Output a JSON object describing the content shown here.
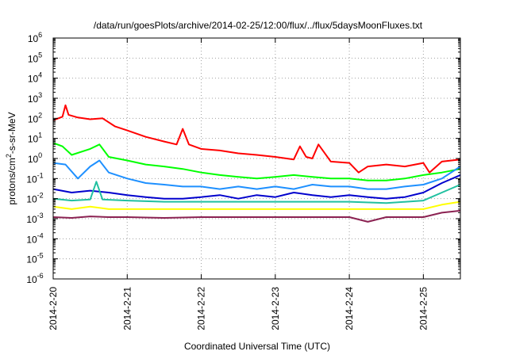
{
  "chart_data": {
    "type": "line",
    "title": "/data/run/goesPlots/archive/2014-02-25/12:00/flux/../flux/5daysMoonFluxes.txt",
    "xlabel": "Coordinated Universal Time (UTC)",
    "ylabel": {
      "base": "protons/cm",
      "sup": "2",
      "rest": "-s-sr-MeV"
    },
    "y_scale": "log",
    "ylim": [
      1e-06,
      1000000.0
    ],
    "y_ticks": [
      {
        "value": 1000000.0,
        "base": "10",
        "exp": "6"
      },
      {
        "value": 100000.0,
        "base": "10",
        "exp": "5"
      },
      {
        "value": 10000.0,
        "base": "10",
        "exp": "4"
      },
      {
        "value": 1000.0,
        "base": "10",
        "exp": "3"
      },
      {
        "value": 100.0,
        "base": "10",
        "exp": "2"
      },
      {
        "value": 10.0,
        "base": "10",
        "exp": "1"
      },
      {
        "value": 1.0,
        "base": "10",
        "exp": "0"
      },
      {
        "value": 0.1,
        "base": "10",
        "exp": "-1"
      },
      {
        "value": 0.01,
        "base": "10",
        "exp": "-2"
      },
      {
        "value": 0.001,
        "base": "10",
        "exp": "-3"
      },
      {
        "value": 0.0001,
        "base": "10",
        "exp": "-4"
      },
      {
        "value": 1e-05,
        "base": "10",
        "exp": "-5"
      },
      {
        "value": 1e-06,
        "base": "10",
        "exp": "-6"
      }
    ],
    "xlim": [
      "2014-02-20T00:00",
      "2014-02-25T12:00"
    ],
    "x_ticks": [
      "2014-2-20",
      "2014-2-21",
      "2014-2-22",
      "2014-2-23",
      "2014-2-24",
      "2014-2-25"
    ],
    "grid": true,
    "series": [
      {
        "color": "#ff0000",
        "x": [
          "2014-02-20T00:00",
          "2014-02-20T03:00",
          "2014-02-20T04:00",
          "2014-02-20T05:00",
          "2014-02-20T08:00",
          "2014-02-20T12:00",
          "2014-02-20T16:00",
          "2014-02-20T20:00",
          "2014-02-21T00:00",
          "2014-02-21T06:00",
          "2014-02-21T12:00",
          "2014-02-21T16:00",
          "2014-02-21T18:00",
          "2014-02-21T20:00",
          "2014-02-22T00:00",
          "2014-02-22T06:00",
          "2014-02-22T12:00",
          "2014-02-22T18:00",
          "2014-02-23T00:00",
          "2014-02-23T06:00",
          "2014-02-23T08:00",
          "2014-02-23T10:00",
          "2014-02-23T12:00",
          "2014-02-23T14:00",
          "2014-02-23T18:00",
          "2014-02-24T00:00",
          "2014-02-24T03:00",
          "2014-02-24T06:00",
          "2014-02-24T12:00",
          "2014-02-24T18:00",
          "2014-02-25T00:00",
          "2014-02-25T02:00",
          "2014-02-25T06:00",
          "2014-02-25T12:00"
        ],
        "y": [
          80,
          120,
          450,
          150,
          110,
          90,
          100,
          40,
          25,
          12,
          7,
          5,
          30,
          5,
          3,
          2.5,
          1.8,
          1.5,
          1.2,
          0.9,
          4,
          1.2,
          1,
          5,
          0.7,
          0.6,
          0.2,
          0.4,
          0.5,
          0.4,
          0.6,
          0.2,
          0.7,
          0.9
        ]
      },
      {
        "color": "#00ff00",
        "x": [
          "2014-02-20T00:00",
          "2014-02-20T03:00",
          "2014-02-20T06:00",
          "2014-02-20T12:00",
          "2014-02-20T15:00",
          "2014-02-20T18:00",
          "2014-02-21T00:00",
          "2014-02-21T06:00",
          "2014-02-21T12:00",
          "2014-02-21T18:00",
          "2014-02-22T00:00",
          "2014-02-22T06:00",
          "2014-02-22T12:00",
          "2014-02-22T18:00",
          "2014-02-23T00:00",
          "2014-02-23T06:00",
          "2014-02-23T12:00",
          "2014-02-23T18:00",
          "2014-02-24T00:00",
          "2014-02-24T06:00",
          "2014-02-24T12:00",
          "2014-02-24T18:00",
          "2014-02-25T00:00",
          "2014-02-25T06:00",
          "2014-02-25T12:00"
        ],
        "y": [
          6,
          4,
          1.5,
          3,
          5,
          1.2,
          0.8,
          0.5,
          0.4,
          0.3,
          0.2,
          0.15,
          0.12,
          0.1,
          0.12,
          0.15,
          0.12,
          0.1,
          0.1,
          0.08,
          0.08,
          0.1,
          0.15,
          0.2,
          0.3
        ]
      },
      {
        "color": "#1e90ff",
        "x": [
          "2014-02-20T00:00",
          "2014-02-20T04:00",
          "2014-02-20T08:00",
          "2014-02-20T12:00",
          "2014-02-20T15:00",
          "2014-02-20T18:00",
          "2014-02-21T00:00",
          "2014-02-21T06:00",
          "2014-02-21T12:00",
          "2014-02-21T18:00",
          "2014-02-22T00:00",
          "2014-02-22T06:00",
          "2014-02-22T12:00",
          "2014-02-22T18:00",
          "2014-02-23T00:00",
          "2014-02-23T06:00",
          "2014-02-23T12:00",
          "2014-02-23T18:00",
          "2014-02-24T00:00",
          "2014-02-24T06:00",
          "2014-02-24T12:00",
          "2014-02-24T18:00",
          "2014-02-25T00:00",
          "2014-02-25T06:00",
          "2014-02-25T12:00"
        ],
        "y": [
          0.6,
          0.5,
          0.1,
          0.4,
          0.8,
          0.2,
          0.1,
          0.06,
          0.05,
          0.04,
          0.04,
          0.03,
          0.04,
          0.03,
          0.04,
          0.03,
          0.05,
          0.04,
          0.04,
          0.03,
          0.03,
          0.04,
          0.05,
          0.1,
          0.4
        ]
      },
      {
        "color": "#0000cd",
        "x": [
          "2014-02-20T00:00",
          "2014-02-20T06:00",
          "2014-02-20T12:00",
          "2014-02-20T18:00",
          "2014-02-21T00:00",
          "2014-02-21T06:00",
          "2014-02-21T12:00",
          "2014-02-21T18:00",
          "2014-02-22T00:00",
          "2014-02-22T06:00",
          "2014-02-22T12:00",
          "2014-02-22T18:00",
          "2014-02-23T00:00",
          "2014-02-23T06:00",
          "2014-02-23T12:00",
          "2014-02-23T18:00",
          "2014-02-24T00:00",
          "2014-02-24T06:00",
          "2014-02-24T12:00",
          "2014-02-24T18:00",
          "2014-02-25T00:00",
          "2014-02-25T06:00",
          "2014-02-25T12:00"
        ],
        "y": [
          0.03,
          0.02,
          0.025,
          0.02,
          0.015,
          0.012,
          0.01,
          0.01,
          0.012,
          0.015,
          0.01,
          0.015,
          0.012,
          0.02,
          0.015,
          0.012,
          0.015,
          0.012,
          0.01,
          0.012,
          0.02,
          0.06,
          0.15
        ]
      },
      {
        "color": "#20c0a0",
        "x": [
          "2014-02-20T00:00",
          "2014-02-20T06:00",
          "2014-02-20T12:00",
          "2014-02-20T14:00",
          "2014-02-20T16:00",
          "2014-02-21T00:00",
          "2014-02-21T12:00",
          "2014-02-22T00:00",
          "2014-02-22T12:00",
          "2014-02-23T00:00",
          "2014-02-23T12:00",
          "2014-02-24T00:00",
          "2014-02-24T12:00",
          "2014-02-25T00:00",
          "2014-02-25T06:00",
          "2014-02-25T12:00"
        ],
        "y": [
          0.01,
          0.008,
          0.009,
          0.07,
          0.009,
          0.008,
          0.007,
          0.007,
          0.007,
          0.007,
          0.007,
          0.007,
          0.006,
          0.008,
          0.02,
          0.05
        ]
      },
      {
        "color": "#ffff00",
        "x": [
          "2014-02-20T00:00",
          "2014-02-20T06:00",
          "2014-02-20T12:00",
          "2014-02-20T18:00",
          "2014-02-21T00:00",
          "2014-02-21T12:00",
          "2014-02-22T00:00",
          "2014-02-22T12:00",
          "2014-02-23T00:00",
          "2014-02-23T12:00",
          "2014-02-24T00:00",
          "2014-02-24T12:00",
          "2014-02-25T00:00",
          "2014-02-25T06:00",
          "2014-02-25T12:00"
        ],
        "y": [
          0.004,
          0.003,
          0.004,
          0.003,
          0.003,
          0.003,
          0.003,
          0.003,
          0.003,
          0.003,
          0.003,
          0.003,
          0.003,
          0.005,
          0.007
        ]
      },
      {
        "color": "#8b2252",
        "x": [
          "2014-02-20T00:00",
          "2014-02-20T06:00",
          "2014-02-20T12:00",
          "2014-02-20T18:00",
          "2014-02-21T00:00",
          "2014-02-21T12:00",
          "2014-02-22T00:00",
          "2014-02-22T12:00",
          "2014-02-23T00:00",
          "2014-02-23T12:00",
          "2014-02-24T00:00",
          "2014-02-24T06:00",
          "2014-02-24T12:00",
          "2014-02-25T00:00",
          "2014-02-25T06:00",
          "2014-02-25T12:00"
        ],
        "y": [
          0.0012,
          0.0011,
          0.0013,
          0.0012,
          0.0012,
          0.0011,
          0.0012,
          0.0012,
          0.0012,
          0.0012,
          0.0012,
          0.0007,
          0.0012,
          0.0012,
          0.002,
          0.0025
        ]
      }
    ]
  }
}
